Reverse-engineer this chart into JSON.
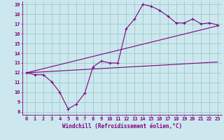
{
  "xlabel": "Windchill (Refroidissement éolien,°C)",
  "bg_color": "#cce8ee",
  "line_color": "#800080",
  "grid_color": "#99cccc",
  "xlim": [
    -0.5,
    23.5
  ],
  "ylim": [
    7.7,
    19.3
  ],
  "xticks": [
    0,
    1,
    2,
    3,
    4,
    5,
    6,
    7,
    8,
    9,
    10,
    11,
    12,
    13,
    14,
    15,
    16,
    17,
    18,
    19,
    20,
    21,
    22,
    23
  ],
  "yticks": [
    8,
    9,
    10,
    11,
    12,
    13,
    14,
    15,
    16,
    17,
    18,
    19
  ],
  "line1_x": [
    0,
    1,
    2,
    3,
    4,
    5,
    6,
    7,
    8,
    9,
    10,
    11,
    12,
    13,
    14,
    15,
    16,
    17,
    18,
    19,
    20,
    21,
    22,
    23
  ],
  "line1_y": [
    12.0,
    11.8,
    11.8,
    11.1,
    10.0,
    8.3,
    8.8,
    9.9,
    12.6,
    13.2,
    13.0,
    13.0,
    16.5,
    17.5,
    19.0,
    18.8,
    18.4,
    17.8,
    17.1,
    17.1,
    17.5,
    17.0,
    17.1,
    16.9
  ],
  "line2_x": [
    0,
    23
  ],
  "line2_y": [
    12.0,
    16.8
  ],
  "line3_x": [
    0,
    23
  ],
  "line3_y": [
    12.0,
    13.1
  ],
  "xlabel_fontsize": 5.5,
  "tick_fontsize": 5.0
}
